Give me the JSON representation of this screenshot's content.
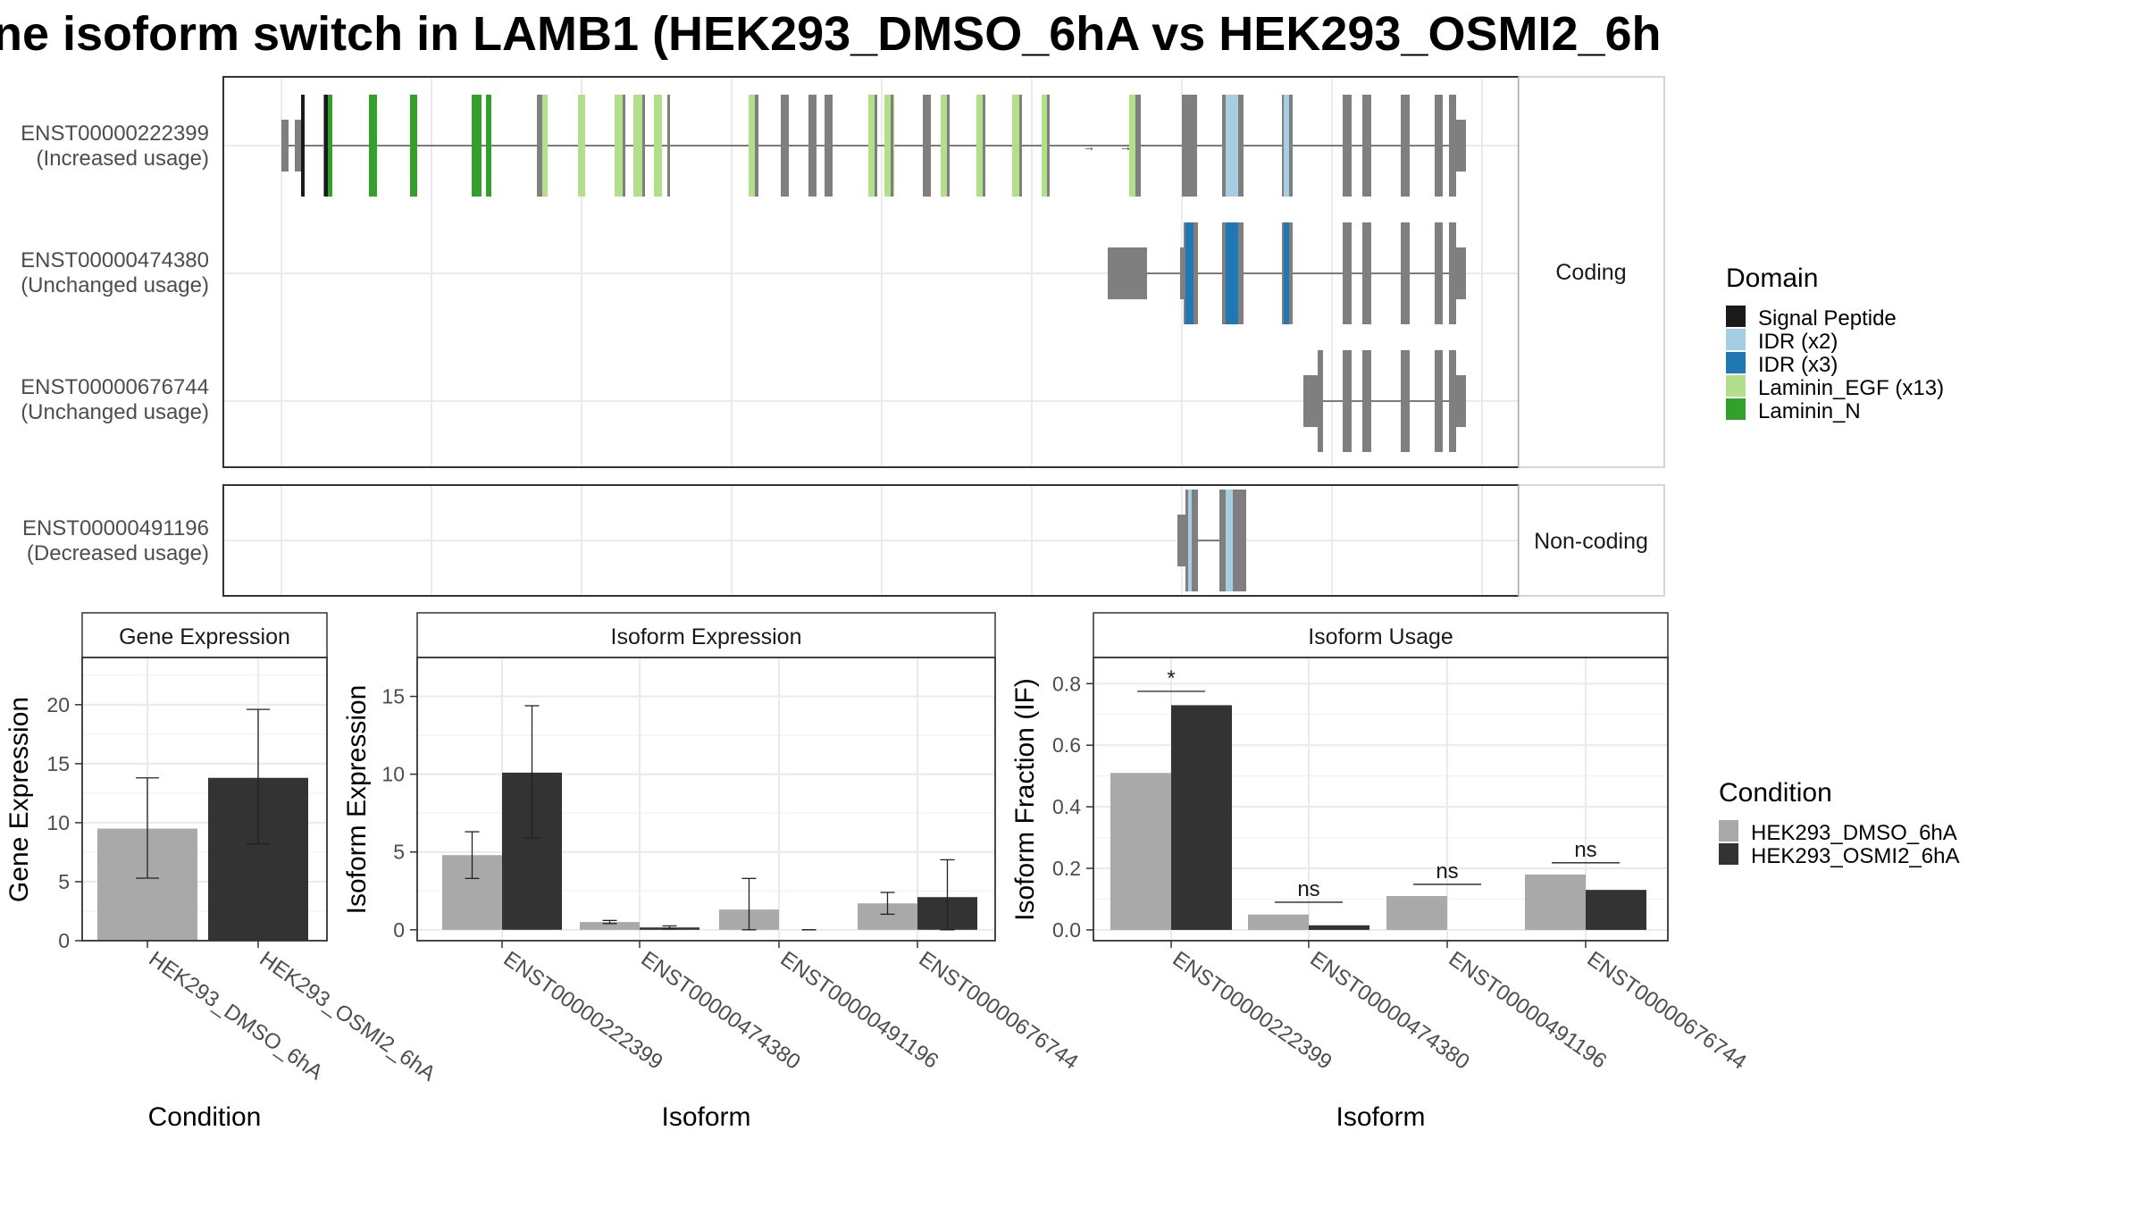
{
  "title": "ne isoform switch in LAMB1 (HEK293_DMSO_6hA vs HEK293_OSMI2_6h",
  "colors": {
    "signal_peptide": "#1a1a1a",
    "idr_x2": "#a6cee3",
    "idr_x3": "#1f78b4",
    "laminin_egf": "#b2df8a",
    "laminin_n": "#33a02c",
    "exon": "#7f7f7f",
    "dmso": "#a9a9a9",
    "osmi2": "#333333",
    "grid": "#ebebeb",
    "panel_border": "#333333",
    "strip_fill": "#ffffff"
  },
  "transcripts": {
    "coding_label": "Coding",
    "noncoding_label": "Non-coding",
    "rows": [
      {
        "id": "ENST00000222399",
        "usage": "(Increased usage)",
        "group": "coding"
      },
      {
        "id": "ENST00000474380",
        "usage": "(Unchanged usage)",
        "group": "coding"
      },
      {
        "id": "ENST00000676744",
        "usage": "(Unchanged usage)",
        "group": "coding"
      },
      {
        "id": "ENST00000491196",
        "usage": "(Decreased usage)",
        "group": "noncoding"
      }
    ]
  },
  "domain_legend": {
    "title": "Domain",
    "items": [
      {
        "label": "Signal Peptide",
        "color_key": "signal_peptide"
      },
      {
        "label": "IDR (x2)",
        "color_key": "idr_x2"
      },
      {
        "label": "IDR (x3)",
        "color_key": "idr_x3"
      },
      {
        "label": "Laminin_EGF (x13)",
        "color_key": "laminin_egf"
      },
      {
        "label": "Laminin_N",
        "color_key": "laminin_n"
      }
    ]
  },
  "condition_legend": {
    "title": "Condition",
    "items": [
      {
        "label": "HEK293_DMSO_6hA",
        "color_key": "dmso"
      },
      {
        "label": "HEK293_OSMI2_6hA",
        "color_key": "osmi2"
      }
    ]
  },
  "chart_data": [
    {
      "type": "bar",
      "title": "Gene Expression",
      "xlabel": "Condition",
      "ylabel": "Gene Expression",
      "ylim": [
        0,
        24
      ],
      "yticks": [
        0,
        5,
        10,
        15,
        20
      ],
      "ytick_labels": [
        "0",
        "5",
        "10",
        "15",
        "20"
      ],
      "categories": [
        "HEK293_DMSO_6hA",
        "HEK293_OSMI2_6hA"
      ],
      "values": [
        9.5,
        13.8
      ],
      "error": [
        [
          5.3,
          13.8
        ],
        [
          8.2,
          19.6
        ]
      ],
      "grid": true
    },
    {
      "type": "bar",
      "title": "Isoform Expression",
      "xlabel": "Isoform",
      "ylabel": "Isoform Expression",
      "ylim": [
        -0.7,
        17.5
      ],
      "yticks": [
        0,
        5,
        10,
        15
      ],
      "ytick_labels": [
        "0",
        "5",
        "10",
        "15"
      ],
      "categories": [
        "ENST00000222399",
        "ENST00000474380",
        "ENST00000491196",
        "ENST00000676744"
      ],
      "series": [
        {
          "name": "HEK293_DMSO_6hA",
          "values": [
            4.8,
            0.5,
            1.3,
            1.7
          ],
          "error": [
            [
              3.3,
              6.3
            ],
            [
              0.4,
              0.6
            ],
            [
              0.0,
              3.3
            ],
            [
              1.0,
              2.4
            ]
          ]
        },
        {
          "name": "HEK293_OSMI2_6hA",
          "values": [
            10.1,
            0.15,
            0.0,
            2.1
          ],
          "error": [
            [
              5.9,
              14.4
            ],
            [
              0.05,
              0.25
            ],
            [
              0.0,
              0.0
            ],
            [
              0.0,
              4.5
            ]
          ]
        }
      ],
      "grid": true
    },
    {
      "type": "bar",
      "title": "Isoform Usage",
      "xlabel": "Isoform",
      "ylabel": "Isoform Fraction (IF)",
      "ylim": [
        -0.035,
        0.885
      ],
      "yticks": [
        0.0,
        0.2,
        0.4,
        0.6,
        0.8
      ],
      "ytick_labels": [
        "0.0",
        "0.2",
        "0.4",
        "0.6",
        "0.8"
      ],
      "categories": [
        "ENST00000222399",
        "ENST00000474380",
        "ENST00000491196",
        "ENST00000676744"
      ],
      "series": [
        {
          "name": "HEK293_DMSO_6hA",
          "values": [
            0.51,
            0.05,
            0.11,
            0.18
          ]
        },
        {
          "name": "HEK293_OSMI2_6hA",
          "values": [
            0.73,
            0.015,
            0.0,
            0.13
          ]
        }
      ],
      "significance": [
        {
          "label": "*",
          "y": 0.775
        },
        {
          "label": "ns",
          "y": 0.09
        },
        {
          "label": "ns",
          "y": 0.148
        },
        {
          "label": "ns",
          "y": 0.218
        }
      ],
      "grid": true
    }
  ]
}
